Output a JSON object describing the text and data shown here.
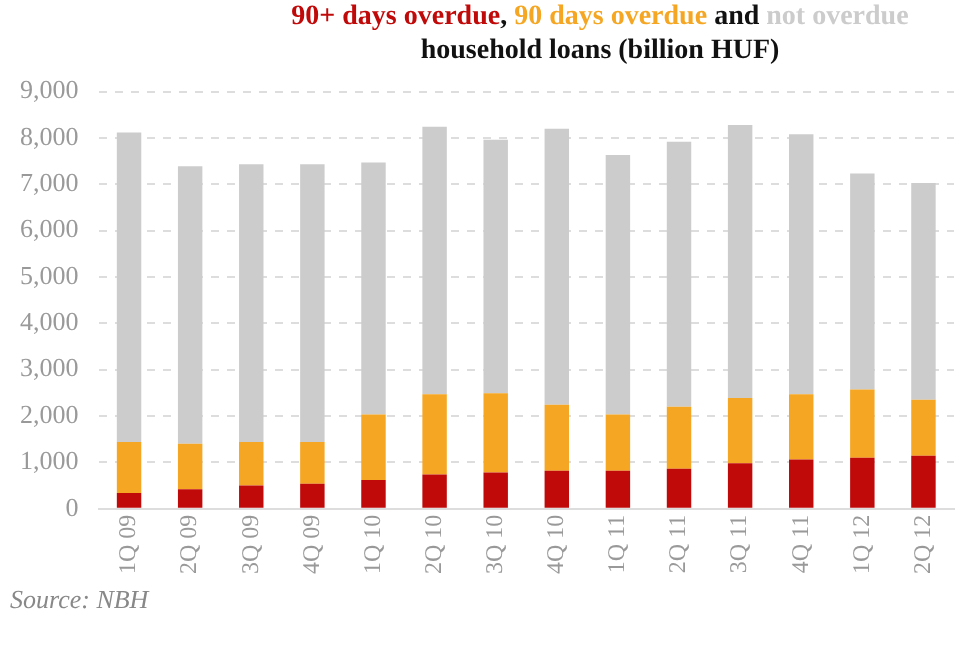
{
  "chart_data": {
    "type": "bar",
    "stacked": true,
    "title": "household loans (billion HUF)",
    "categories": [
      "1Q 09",
      "2Q 09",
      "3Q 09",
      "4Q 09",
      "1Q 10",
      "2Q 10",
      "3Q 10",
      "4Q 10",
      "1Q 11",
      "2Q 11",
      "3Q 11",
      "4Q 11",
      "1Q 12",
      "2Q 12"
    ],
    "series": [
      {
        "name": "90+ days overdue",
        "color": "#c00a0a",
        "values": [
          340,
          420,
          500,
          540,
          620,
          740,
          780,
          820,
          820,
          860,
          980,
          1060,
          1100,
          1140
        ]
      },
      {
        "name": "90 days overdue",
        "color": "#f5a623",
        "values": [
          1100,
          980,
          940,
          900,
          1410,
          1730,
          1710,
          1420,
          1210,
          1340,
          1410,
          1410,
          1470,
          1210
        ]
      },
      {
        "name": "not overdue",
        "color": "#cccccc",
        "values": [
          6680,
          5990,
          5990,
          5990,
          5440,
          5770,
          5470,
          5960,
          5600,
          5720,
          5890,
          5610,
          4660,
          4680
        ]
      }
    ],
    "ylim": [
      0,
      9000
    ],
    "yticks": [
      {
        "value": 0,
        "label": "0"
      },
      {
        "value": 1000,
        "label": "1,000"
      },
      {
        "value": 2000,
        "label": "2,000"
      },
      {
        "value": 3000,
        "label": "3,000"
      },
      {
        "value": 4000,
        "label": "4,000"
      },
      {
        "value": 5000,
        "label": "5,000"
      },
      {
        "value": 6000,
        "label": "6,000"
      },
      {
        "value": 7000,
        "label": "7,000"
      },
      {
        "value": 8000,
        "label": "8,000"
      },
      {
        "value": 9000,
        "label": "9,000"
      }
    ],
    "grid": "y",
    "legend": false,
    "annotations": [
      "Source: NBH",
      ",",
      "and"
    ]
  }
}
